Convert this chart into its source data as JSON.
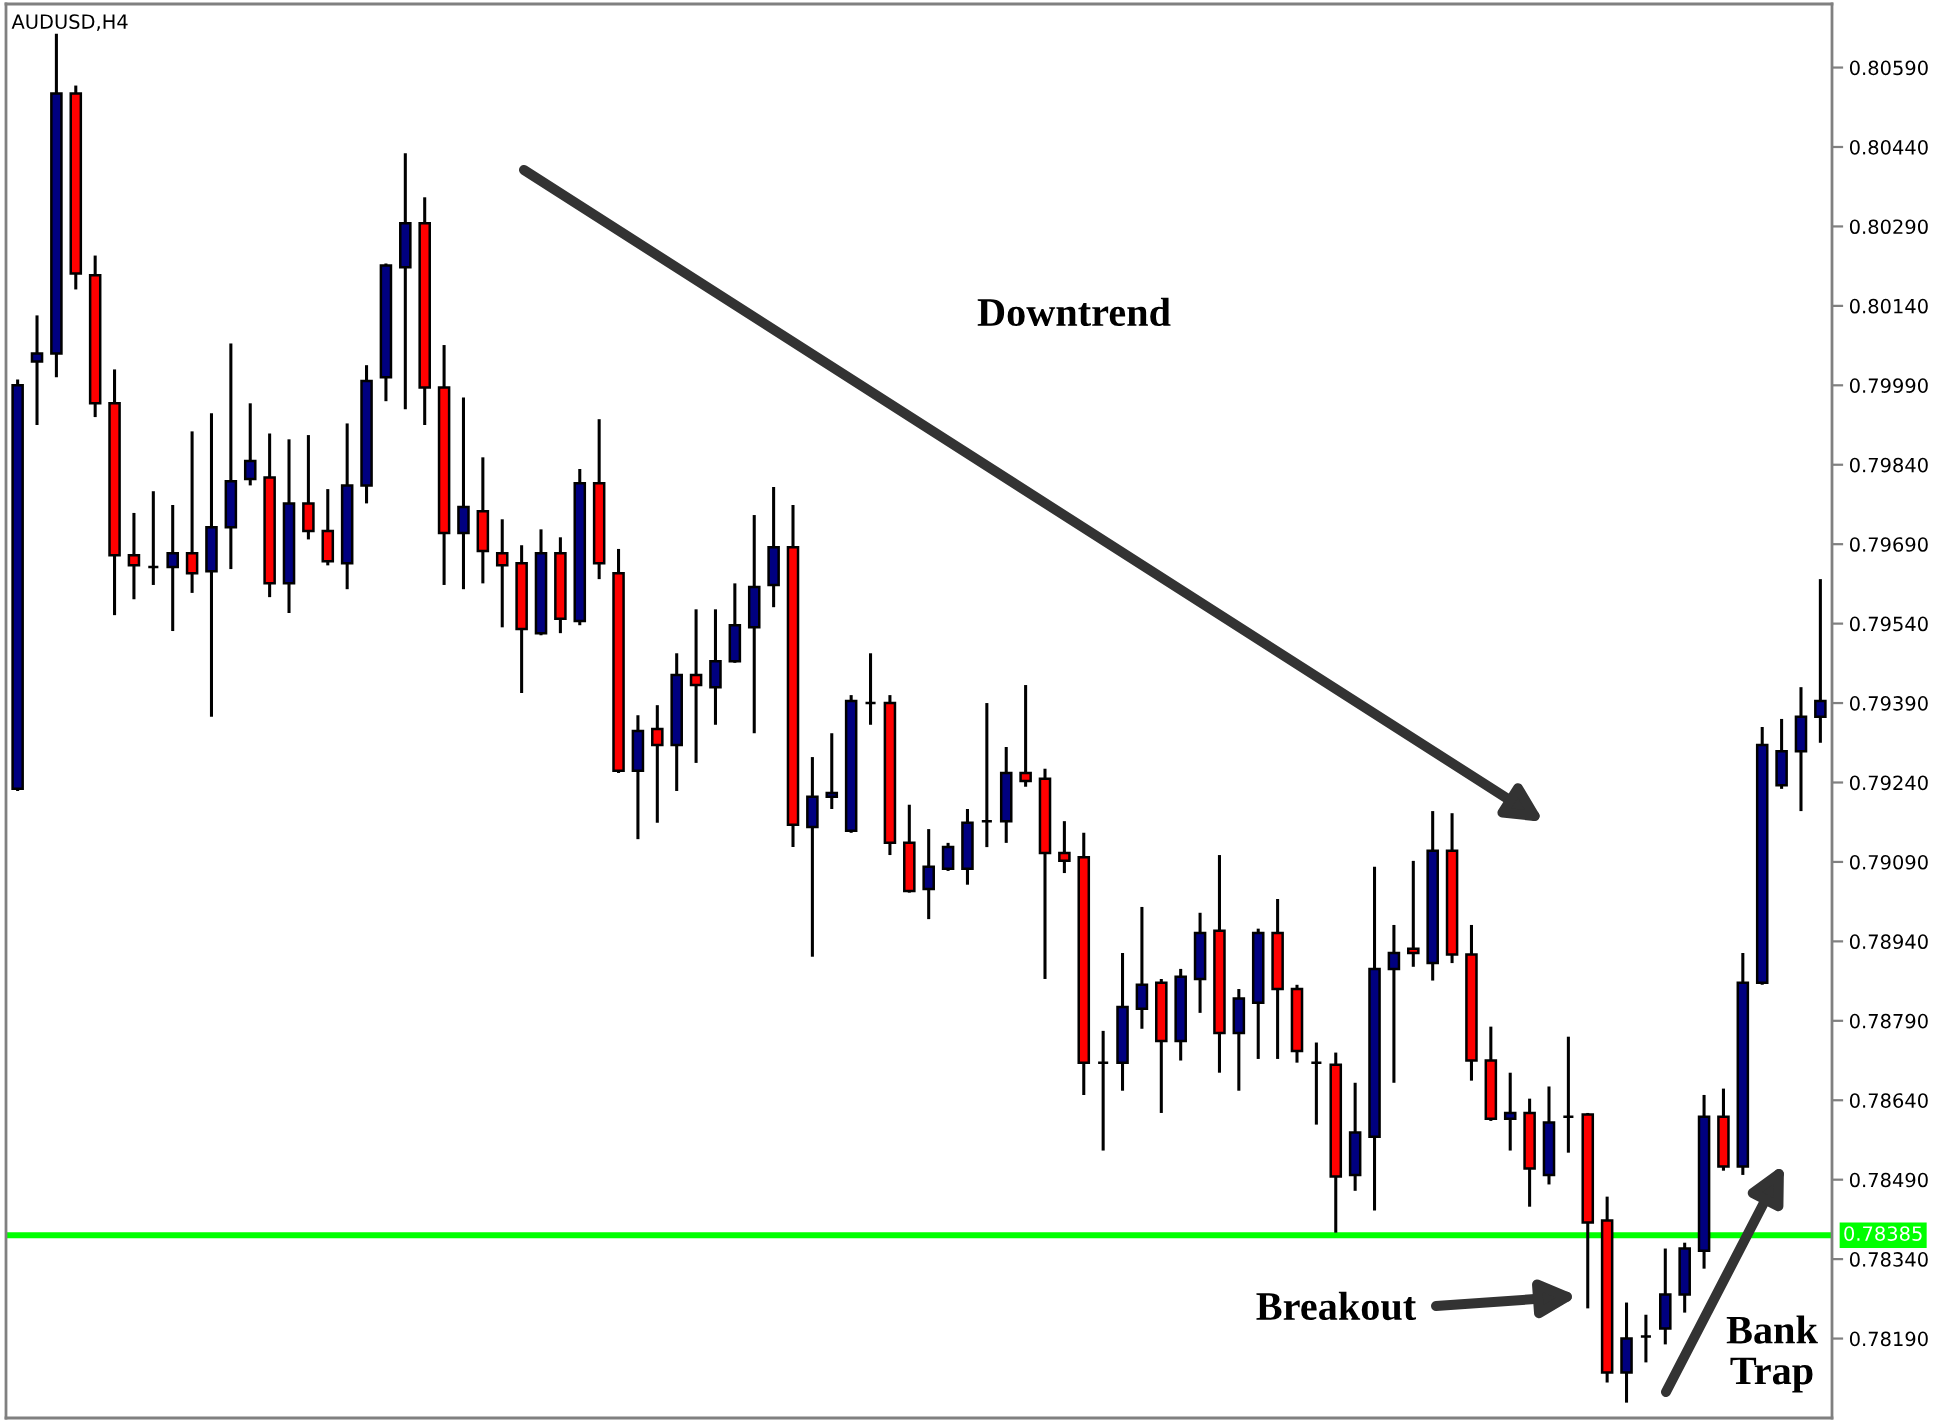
{
  "chart_data": {
    "type": "candlestick",
    "title": "AUDUSD,H4",
    "categories": [
      null,
      null,
      null,
      null,
      null,
      null,
      null,
      null,
      null,
      null,
      null,
      null,
      null,
      null,
      null,
      null,
      null,
      null,
      null,
      null,
      null,
      null,
      null,
      null,
      null,
      null,
      null,
      null,
      null,
      null,
      null,
      null,
      null,
      null,
      null,
      null,
      null,
      null,
      null,
      null,
      null,
      null,
      null,
      null,
      null,
      null,
      null,
      null,
      null,
      null,
      null,
      null,
      null,
      null,
      null,
      null,
      null,
      null,
      null,
      null,
      null,
      null,
      null,
      null,
      null,
      null,
      null,
      null,
      null,
      null,
      null,
      null,
      null,
      null,
      null,
      null,
      null,
      null,
      null,
      null,
      null,
      null,
      null,
      null,
      null,
      null,
      null,
      null,
      null,
      null,
      null,
      null,
      null,
      null
    ],
    "ohlc": [
      [
        0.79228,
        0.80001,
        0.79224,
        0.7999
      ],
      [
        0.80035,
        0.80122,
        0.79915,
        0.8005
      ],
      [
        0.8005,
        0.80654,
        0.80005,
        0.80541
      ],
      [
        0.80541,
        0.80556,
        0.80171,
        0.80201
      ],
      [
        0.80198,
        0.80235,
        0.7993,
        0.79956
      ],
      [
        0.79956,
        0.8002,
        0.79556,
        0.79669
      ],
      [
        0.79669,
        0.79749,
        0.79586,
        0.7965
      ],
      [
        0.79647,
        0.7979,
        0.79613,
        0.79647
      ],
      [
        0.79647,
        0.79764,
        0.79526,
        0.79673
      ],
      [
        0.79673,
        0.79903,
        0.79598,
        0.79635
      ],
      [
        0.79639,
        0.79937,
        0.79364,
        0.79722
      ],
      [
        0.79722,
        0.80069,
        0.79643,
        0.79809
      ],
      [
        0.79813,
        0.79956,
        0.79801,
        0.79847
      ],
      [
        0.79816,
        0.79899,
        0.7959,
        0.79616
      ],
      [
        0.79616,
        0.79888,
        0.7956,
        0.79767
      ],
      [
        0.79767,
        0.79896,
        0.79699,
        0.79715
      ],
      [
        0.79715,
        0.79794,
        0.7965,
        0.79658
      ],
      [
        0.79654,
        0.79918,
        0.79605,
        0.79801
      ],
      [
        0.79801,
        0.80028,
        0.79767,
        0.79998
      ],
      [
        0.80005,
        0.8022,
        0.7996,
        0.80216
      ],
      [
        0.80213,
        0.80428,
        0.79945,
        0.80296
      ],
      [
        0.80296,
        0.80345,
        0.79915,
        0.79986
      ],
      [
        0.79986,
        0.80066,
        0.79613,
        0.79711
      ],
      [
        0.79711,
        0.79967,
        0.79605,
        0.7976
      ],
      [
        0.79752,
        0.79854,
        0.79616,
        0.79677
      ],
      [
        0.79673,
        0.79737,
        0.79533,
        0.7965
      ],
      [
        0.79654,
        0.79688,
        0.79409,
        0.7953
      ],
      [
        0.79522,
        0.79718,
        0.79518,
        0.79673
      ],
      [
        0.79673,
        0.79703,
        0.79522,
        0.79549
      ],
      [
        0.79545,
        0.79832,
        0.79537,
        0.79805
      ],
      [
        0.79805,
        0.79926,
        0.79624,
        0.79654
      ],
      [
        0.79635,
        0.79681,
        0.79258,
        0.79262
      ],
      [
        0.79262,
        0.79367,
        0.79133,
        0.79337
      ],
      [
        0.79341,
        0.79386,
        0.79164,
        0.79311
      ],
      [
        0.79311,
        0.79484,
        0.79224,
        0.79443
      ],
      [
        0.79443,
        0.79567,
        0.79277,
        0.79424
      ],
      [
        0.7942,
        0.79567,
        0.79349,
        0.79469
      ],
      [
        0.79469,
        0.79616,
        0.79466,
        0.79537
      ],
      [
        0.79533,
        0.79745,
        0.79333,
        0.79609
      ],
      [
        0.79613,
        0.79798,
        0.79571,
        0.79684
      ],
      [
        0.79684,
        0.79764,
        0.79118,
        0.7916
      ],
      [
        0.79156,
        0.79288,
        0.78911,
        0.79213
      ],
      [
        0.79213,
        0.79333,
        0.7919,
        0.7922
      ],
      [
        0.79149,
        0.79405,
        0.79145,
        0.79394
      ],
      [
        0.7939,
        0.79484,
        0.79349,
        0.7939
      ],
      [
        0.7939,
        0.79405,
        0.79103,
        0.79126
      ],
      [
        0.79126,
        0.79198,
        0.79032,
        0.79035
      ],
      [
        0.79039,
        0.79152,
        0.78982,
        0.79081
      ],
      [
        0.79077,
        0.79126,
        0.79073,
        0.79118
      ],
      [
        0.79077,
        0.7919,
        0.79047,
        0.79164
      ],
      [
        0.79167,
        0.7939,
        0.79118,
        0.79167
      ],
      [
        0.79167,
        0.79307,
        0.79126,
        0.79258
      ],
      [
        0.79258,
        0.79424,
        0.79232,
        0.79243
      ],
      [
        0.79247,
        0.79266,
        0.78869,
        0.79107
      ],
      [
        0.79107,
        0.79167,
        0.79069,
        0.79092
      ],
      [
        0.79099,
        0.79145,
        0.7865,
        0.78711
      ],
      [
        0.78711,
        0.78771,
        0.78545,
        0.78711
      ],
      [
        0.78711,
        0.78918,
        0.78658,
        0.78816
      ],
      [
        0.78813,
        0.79005,
        0.78775,
        0.78858
      ],
      [
        0.78862,
        0.78869,
        0.78616,
        0.78752
      ],
      [
        0.78752,
        0.78888,
        0.78715,
        0.78873
      ],
      [
        0.78869,
        0.78994,
        0.78805,
        0.78956
      ],
      [
        0.7896,
        0.79103,
        0.78692,
        0.78767
      ],
      [
        0.78767,
        0.7885,
        0.78658,
        0.78832
      ],
      [
        0.78824,
        0.78964,
        0.78718,
        0.78956
      ],
      [
        0.78956,
        0.7902,
        0.78718,
        0.7885
      ],
      [
        0.7885,
        0.78858,
        0.78711,
        0.78733
      ],
      [
        0.78711,
        0.78749,
        0.78594,
        0.78711
      ],
      [
        0.78707,
        0.7873,
        0.7839,
        0.78496
      ],
      [
        0.78499,
        0.78673,
        0.78469,
        0.78579
      ],
      [
        0.78571,
        0.79081,
        0.78432,
        0.78888
      ],
      [
        0.78888,
        0.78971,
        0.78673,
        0.78918
      ],
      [
        0.78926,
        0.79092,
        0.78892,
        0.78918
      ],
      [
        0.78899,
        0.79186,
        0.78866,
        0.79111
      ],
      [
        0.79111,
        0.79182,
        0.78899,
        0.78915
      ],
      [
        0.78915,
        0.78971,
        0.78677,
        0.78715
      ],
      [
        0.78715,
        0.78779,
        0.78601,
        0.78605
      ],
      [
        0.78605,
        0.78692,
        0.78545,
        0.78616
      ],
      [
        0.78616,
        0.78643,
        0.78439,
        0.78511
      ],
      [
        0.78499,
        0.78666,
        0.78481,
        0.78598
      ],
      [
        0.78609,
        0.7876,
        0.78541,
        0.78609
      ],
      [
        0.78613,
        0.78616,
        0.78247,
        0.78409
      ],
      [
        0.78413,
        0.78458,
        0.78107,
        0.78126
      ],
      [
        0.78126,
        0.78258,
        0.78069,
        0.7819
      ],
      [
        0.78194,
        0.78235,
        0.78145,
        0.78194
      ],
      [
        0.78209,
        0.7836,
        0.78179,
        0.78273
      ],
      [
        0.78273,
        0.78371,
        0.78239,
        0.7836
      ],
      [
        0.78356,
        0.7865,
        0.78322,
        0.78609
      ],
      [
        0.78609,
        0.78662,
        0.78507,
        0.78515
      ],
      [
        0.78515,
        0.78918,
        0.78499,
        0.78862
      ],
      [
        0.78862,
        0.79345,
        0.78858,
        0.79311
      ],
      [
        0.79235,
        0.7936,
        0.79228,
        0.79299
      ],
      [
        0.79299,
        0.7942,
        0.79186,
        0.79364
      ],
      [
        0.79364,
        0.79624,
        0.79315,
        0.79394
      ]
    ],
    "colors": [
      "#000080",
      "#000080",
      "#000080",
      "#ff0000",
      "#ff0000",
      "#ff0000",
      "#ff0000",
      "#000000",
      "#000080",
      "#ff0000",
      "#000080",
      "#000080",
      "#000080",
      "#ff0000",
      "#000080",
      "#ff0000",
      "#ff0000",
      "#000080",
      "#000080",
      "#000080",
      "#000080",
      "#ff0000",
      "#ff0000",
      "#000080",
      "#ff0000",
      "#ff0000",
      "#ff0000",
      "#000080",
      "#ff0000",
      "#000080",
      "#ff0000",
      "#ff0000",
      "#000080",
      "#ff0000",
      "#000080",
      "#ff0000",
      "#000080",
      "#000080",
      "#000080",
      "#000080",
      "#ff0000",
      "#000080",
      "#000080",
      "#000080",
      "#000000",
      "#ff0000",
      "#ff0000",
      "#000080",
      "#000080",
      "#000080",
      "#000000",
      "#000080",
      "#ff0000",
      "#ff0000",
      "#ff0000",
      "#ff0000",
      "#000000",
      "#000080",
      "#000080",
      "#ff0000",
      "#000080",
      "#000080",
      "#ff0000",
      "#000080",
      "#000080",
      "#ff0000",
      "#ff0000",
      "#000000",
      "#ff0000",
      "#000080",
      "#000080",
      "#000080",
      "#ff0000",
      "#000080",
      "#ff0000",
      "#ff0000",
      "#ff0000",
      "#000080",
      "#ff0000",
      "#000080",
      "#000000",
      "#ff0000",
      "#ff0000",
      "#000080",
      "#000000",
      "#000080",
      "#000080",
      "#000080",
      "#ff0000",
      "#000080",
      "#000080",
      "#000080",
      "#000080",
      "#000080"
    ],
    "ylim": [
      0.7804,
      0.8071
    ],
    "yticks": [
      {
        "value": 0.8059,
        "label": "0.80590"
      },
      {
        "value": 0.8044,
        "label": "0.80440"
      },
      {
        "value": 0.8029,
        "label": "0.80290"
      },
      {
        "value": 0.8014,
        "label": "0.80140"
      },
      {
        "value": 0.7999,
        "label": "0.79990"
      },
      {
        "value": 0.7984,
        "label": "0.79840"
      },
      {
        "value": 0.7969,
        "label": "0.79690"
      },
      {
        "value": 0.7954,
        "label": "0.79540"
      },
      {
        "value": 0.7939,
        "label": "0.79390"
      },
      {
        "value": 0.7924,
        "label": "0.79240"
      },
      {
        "value": 0.7909,
        "label": "0.79090"
      },
      {
        "value": 0.7894,
        "label": "0.78940"
      },
      {
        "value": 0.7879,
        "label": "0.78790"
      },
      {
        "value": 0.7864,
        "label": "0.78640"
      },
      {
        "value": 0.7849,
        "label": "0.78490"
      },
      {
        "value": 0.7834,
        "label": "0.78340"
      },
      {
        "value": 0.7819,
        "label": "0.78190"
      }
    ],
    "tick_labels": "y",
    "ref_lines": [
      {
        "axis": "y",
        "value": 0.78385,
        "label": "0.78385",
        "color": "#00ff00"
      }
    ],
    "annotations": [
      "Downtrend",
      "Breakout",
      "Bank\nTrap"
    ]
  }
}
